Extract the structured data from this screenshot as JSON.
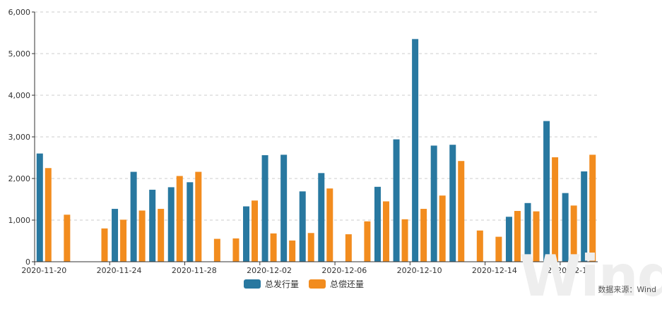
{
  "chart_data": {
    "type": "bar",
    "ylim": [
      0,
      6000
    ],
    "yticks": [
      "0",
      "1,000",
      "2,000",
      "3,000",
      "4,000",
      "5,000",
      "6,000"
    ],
    "categories": [
      "2020-11-20",
      "2020-11-21",
      "2020-11-22",
      "2020-11-23",
      "2020-11-24",
      "2020-11-25",
      "2020-11-26",
      "2020-11-27",
      "2020-11-28",
      "2020-11-29",
      "2020-11-30",
      "2020-12-01",
      "2020-12-02",
      "2020-12-03",
      "2020-12-04",
      "2020-12-05",
      "2020-12-06",
      "2020-12-07",
      "2020-12-08",
      "2020-12-09",
      "2020-12-10",
      "2020-12-11",
      "2020-12-12",
      "2020-12-13",
      "2020-12-14",
      "2020-12-15",
      "2020-12-16",
      "2020-12-17",
      "2020-12-18",
      "2020-12-19"
    ],
    "xtick_labels": [
      {
        "index": 0,
        "label": "2020-11-20"
      },
      {
        "index": 4,
        "label": "2020-11-24"
      },
      {
        "index": 8,
        "label": "2020-11-28"
      },
      {
        "index": 12,
        "label": "2020-12-02"
      },
      {
        "index": 16,
        "label": "2020-12-06"
      },
      {
        "index": 20,
        "label": "2020-12-10"
      },
      {
        "index": 24,
        "label": "2020-12-14"
      },
      {
        "index": 28,
        "label": "2020-12-18"
      }
    ],
    "series": [
      {
        "name": "总发行量",
        "color": "#2878a0",
        "values": [
          2600,
          0,
          0,
          0,
          1270,
          2160,
          1730,
          1790,
          1910,
          0,
          0,
          1330,
          2560,
          2570,
          1690,
          2130,
          0,
          0,
          1800,
          2940,
          5350,
          2790,
          2810,
          0,
          0,
          1080,
          1410,
          3380,
          1650,
          2170
        ]
      },
      {
        "name": "总偿还量",
        "color": "#f28c1e",
        "values": [
          2250,
          1130,
          0,
          800,
          1010,
          1230,
          1270,
          2060,
          2160,
          550,
          560,
          1470,
          680,
          510,
          690,
          1760,
          660,
          970,
          1450,
          1020,
          1270,
          1590,
          2420,
          750,
          600,
          1220,
          1210,
          2510,
          1350,
          2570
        ]
      }
    ],
    "grid": "horizontal dashed",
    "legend": "bottom-center"
  },
  "source_text": "数据来源：Wind",
  "watermark_text": "Wind"
}
